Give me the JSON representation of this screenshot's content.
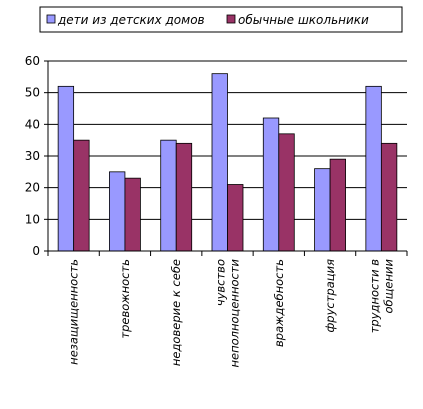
{
  "chart_data": {
    "type": "bar",
    "categories": [
      [
        "незащищенность"
      ],
      [
        "тревожность"
      ],
      [
        "недоверие к себе"
      ],
      [
        "чувство",
        "неполноценности"
      ],
      [
        "враждебность"
      ],
      [
        "фрустрация"
      ],
      [
        "трудности в",
        "общении"
      ]
    ],
    "series": [
      {
        "name": "дети из детских домов",
        "color": "#9999FF",
        "values": [
          52,
          25,
          35,
          56,
          42,
          26,
          52
        ]
      },
      {
        "name": "обычные школьники",
        "color": "#993366",
        "values": [
          35,
          23,
          34,
          21,
          37,
          29,
          34
        ]
      }
    ],
    "ylim": [
      0,
      60
    ],
    "yticks": [
      0,
      10,
      20,
      30,
      40,
      50,
      60
    ],
    "grid": true,
    "legend": "top"
  }
}
